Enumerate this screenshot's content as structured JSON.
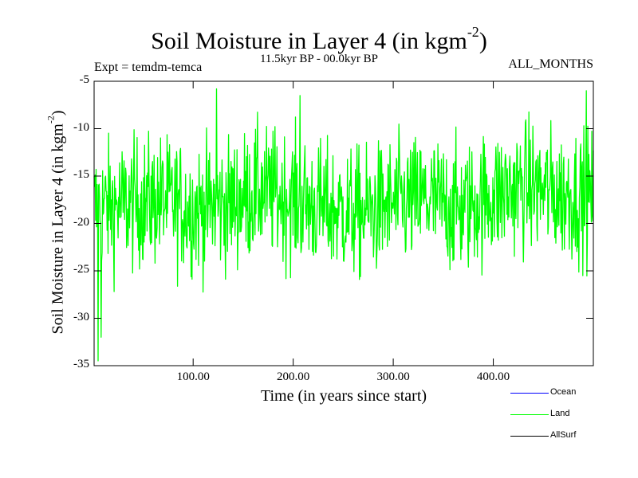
{
  "chart_data": {
    "type": "line",
    "title_main": "Soil Moisture in Layer 4 (in kgm",
    "title_sup": "-2",
    "title_end": ")",
    "subtitle": "11.5kyr BP - 00.0kyr BP",
    "expt_label": "Expt = temdm-temca",
    "months_label": "ALL_MONTHS",
    "xlabel": "Time (in years since start)",
    "ylabel_main": "Soil Moisture in Layer 4 (in kgm",
    "ylabel_sup": "-2",
    "ylabel_end": ")",
    "xlim": [
      1,
      500
    ],
    "ylim": [
      -35,
      -5
    ],
    "x_ticks": [
      100,
      200,
      300,
      400
    ],
    "x_tick_labels": [
      "100.00",
      "200.00",
      "300.00",
      "400.00"
    ],
    "y_ticks": [
      -35,
      -30,
      -25,
      -20,
      -15,
      -10,
      -5
    ],
    "y_tick_labels": [
      "-35",
      "-30",
      "-25",
      "-20",
      "-15",
      "-10",
      "-5"
    ],
    "series": [
      {
        "name": "Land",
        "color": "#00ff00",
        "segments_mean": [
          -18.5,
          -18.0,
          -17.5,
          -18.5,
          -18.0,
          -16.5,
          -17.5,
          -18.5,
          -19.0,
          -18.0,
          -17.5,
          -18.5,
          -17.0,
          -16.0,
          -17.0,
          -17.0
        ],
        "min": -34.5,
        "max": -5.8,
        "std": 3.4
      },
      {
        "name": "Ocean",
        "color": "#0000ff"
      },
      {
        "name": "AllSurf",
        "color": "#000000"
      }
    ],
    "legend": [
      {
        "label": "Ocean",
        "color": "#0000ff"
      },
      {
        "label": "Land",
        "color": "#00ff00"
      },
      {
        "label": "AllSurf",
        "color": "#000000"
      }
    ]
  }
}
